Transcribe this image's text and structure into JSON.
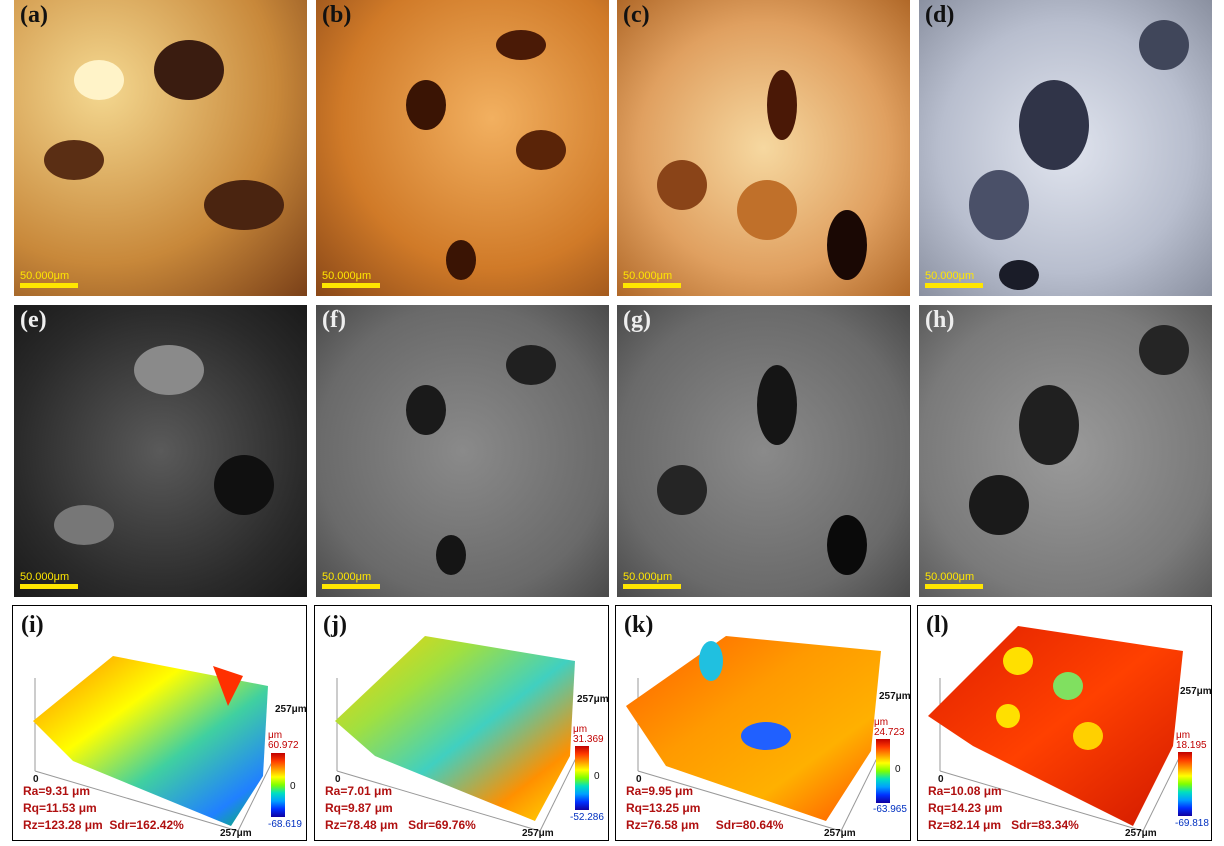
{
  "panels_optical": [
    {
      "letter": "(a)",
      "scale": "50.000μm"
    },
    {
      "letter": "(b)",
      "scale": "50.000μm"
    },
    {
      "letter": "(c)",
      "scale": "50.000μm"
    },
    {
      "letter": "(d)",
      "scale": "50.000μm"
    }
  ],
  "panels_sem": [
    {
      "letter": "(e)",
      "scale": "50.000μm"
    },
    {
      "letter": "(f)",
      "scale": "50.000μm"
    },
    {
      "letter": "(g)",
      "scale": "50.000μm"
    },
    {
      "letter": "(h)",
      "scale": "50.000μm"
    }
  ],
  "panels_3d": [
    {
      "letter": "(i)",
      "unit": "μm",
      "max": "60.972",
      "zero": "0",
      "min": "-68.619",
      "axis_y": "257μm",
      "axis_x": "257μm",
      "axis_origin": "0",
      "ra": "Ra=9.31 μm",
      "rq": "Rq=11.53 μm",
      "rz": "Rz=123.28 μm",
      "sdr": "Sdr=162.42%"
    },
    {
      "letter": "(j)",
      "unit": "μm",
      "max": "31.369",
      "zero": "0",
      "min": "-52.286",
      "axis_y": "257μm",
      "axis_x": "257μm",
      "axis_origin": "0",
      "ra": "Ra=7.01 μm",
      "rq": "Rq=9.87 μm",
      "rz": "Rz=78.48 μm",
      "sdr": "Sdr=69.76%"
    },
    {
      "letter": "(k)",
      "unit": "μm",
      "max": "24.723",
      "zero": "0",
      "min": "-63.965",
      "axis_y": "257μm",
      "axis_x": "257μm",
      "axis_origin": "0",
      "ra": "Ra=9.95 μm",
      "rq": "Rq=13.25 μm",
      "rz": "Rz=76.58 μm",
      "sdr": "Sdr=80.64%"
    },
    {
      "letter": "(l)",
      "unit": "μm",
      "max": "18.195",
      "zero": "0",
      "min": "-69.818",
      "axis_y": "257μm",
      "axis_x": "257μm",
      "axis_origin": "0",
      "ra": "Ra=10.08 μm",
      "rq": "Rq=14.23 μm",
      "rz": "Rz=82.14 μm",
      "sdr": "Sdr=83.34%"
    }
  ],
  "colors": {
    "scale_bar": "#ffe600",
    "stats_text": "#b01010"
  }
}
